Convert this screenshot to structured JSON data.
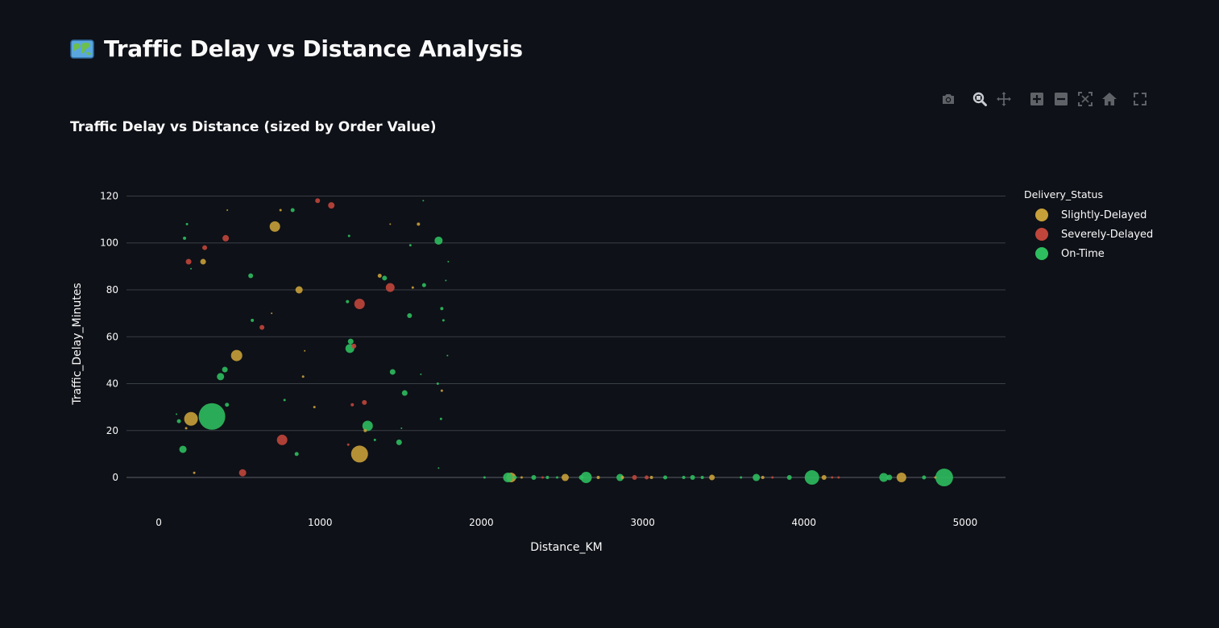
{
  "page": {
    "title": "Traffic Delay vs Distance Analysis",
    "title_icon": "world-map-icon"
  },
  "toolbar": {
    "icons": [
      "camera-icon",
      "zoom-icon",
      "pan-icon",
      "zoom-in-icon",
      "zoom-out-icon",
      "autoscale-icon",
      "reset-axes-icon",
      "fullscreen-icon"
    ]
  },
  "colors": {
    "background": "#0e1117",
    "grid": "#3a3e45",
    "Slightly-Delayed": "#c8a03a",
    "Severely-Delayed": "#c0463b",
    "On-Time": "#2ebd5e"
  },
  "chart_data": {
    "type": "scatter",
    "title": "Traffic Delay vs Distance (sized by Order Value)",
    "xlabel": "Distance_KM",
    "ylabel": "Traffic_Delay_Minutes",
    "xlim": [
      -200,
      5250
    ],
    "ylim": [
      -12,
      126
    ],
    "xticks": [
      0,
      1000,
      2000,
      3000,
      4000,
      5000
    ],
    "yticks": [
      0,
      20,
      40,
      60,
      80,
      100,
      120
    ],
    "grid": true,
    "legend_title": "Delivery_Status",
    "legend_position": "right",
    "size_variable": "Order Value",
    "series": [
      {
        "name": "Slightly-Delayed",
        "points": [
          {
            "x": 200,
            "y": 25,
            "s": 17
          },
          {
            "x": 483,
            "y": 52,
            "s": 14
          },
          {
            "x": 720,
            "y": 107,
            "s": 13
          },
          {
            "x": 1245,
            "y": 10,
            "s": 21
          },
          {
            "x": 870,
            "y": 80,
            "s": 9
          },
          {
            "x": 275,
            "y": 92,
            "s": 7
          },
          {
            "x": 1370,
            "y": 86,
            "s": 5
          },
          {
            "x": 1610,
            "y": 108,
            "s": 4
          },
          {
            "x": 1280,
            "y": 20,
            "s": 4
          },
          {
            "x": 170,
            "y": 21,
            "s": 3
          },
          {
            "x": 220,
            "y": 2,
            "s": 3
          },
          {
            "x": 895,
            "y": 43,
            "s": 3
          },
          {
            "x": 965,
            "y": 30,
            "s": 3
          },
          {
            "x": 755,
            "y": 114,
            "s": 3
          },
          {
            "x": 1755,
            "y": 37,
            "s": 3
          },
          {
            "x": 1575,
            "y": 81,
            "s": 3
          },
          {
            "x": 700,
            "y": 70,
            "s": 2
          },
          {
            "x": 1435,
            "y": 108,
            "s": 2
          },
          {
            "x": 905,
            "y": 54,
            "s": 2
          },
          {
            "x": 425,
            "y": 114,
            "s": 2
          },
          {
            "x": 2185,
            "y": 0,
            "s": 12
          },
          {
            "x": 2520,
            "y": 0,
            "s": 9
          },
          {
            "x": 4605,
            "y": 0,
            "s": 12
          },
          {
            "x": 3430,
            "y": 0,
            "s": 7
          },
          {
            "x": 4125,
            "y": 0,
            "s": 6
          },
          {
            "x": 2725,
            "y": 0,
            "s": 4
          },
          {
            "x": 2875,
            "y": 0,
            "s": 4
          },
          {
            "x": 3055,
            "y": 0,
            "s": 4
          },
          {
            "x": 3745,
            "y": 0,
            "s": 4
          },
          {
            "x": 2250,
            "y": 0,
            "s": 3
          },
          {
            "x": 4815,
            "y": 0,
            "s": 3
          }
        ]
      },
      {
        "name": "Severely-Delayed",
        "points": [
          {
            "x": 765,
            "y": 16,
            "s": 13
          },
          {
            "x": 1245,
            "y": 74,
            "s": 13
          },
          {
            "x": 1435,
            "y": 81,
            "s": 11
          },
          {
            "x": 1070,
            "y": 116,
            "s": 8
          },
          {
            "x": 520,
            "y": 2,
            "s": 9
          },
          {
            "x": 415,
            "y": 102,
            "s": 8
          },
          {
            "x": 185,
            "y": 92,
            "s": 7
          },
          {
            "x": 985,
            "y": 118,
            "s": 6
          },
          {
            "x": 1275,
            "y": 32,
            "s": 6
          },
          {
            "x": 640,
            "y": 64,
            "s": 6
          },
          {
            "x": 285,
            "y": 98,
            "s": 6
          },
          {
            "x": 1210,
            "y": 56,
            "s": 6
          },
          {
            "x": 1200,
            "y": 31,
            "s": 4
          },
          {
            "x": 1175,
            "y": 14,
            "s": 3
          },
          {
            "x": 2950,
            "y": 0,
            "s": 6
          },
          {
            "x": 3025,
            "y": 0,
            "s": 5
          },
          {
            "x": 2380,
            "y": 0,
            "s": 3
          },
          {
            "x": 4175,
            "y": 0,
            "s": 3
          },
          {
            "x": 4215,
            "y": 0,
            "s": 3
          },
          {
            "x": 3805,
            "y": 0,
            "s": 3
          }
        ]
      },
      {
        "name": "On-Time",
        "points": [
          {
            "x": 330,
            "y": 26,
            "s": 33
          },
          {
            "x": 1295,
            "y": 22,
            "s": 13
          },
          {
            "x": 1185,
            "y": 55,
            "s": 11
          },
          {
            "x": 1735,
            "y": 101,
            "s": 10
          },
          {
            "x": 150,
            "y": 12,
            "s": 9
          },
          {
            "x": 383,
            "y": 43,
            "s": 9
          },
          {
            "x": 410,
            "y": 46,
            "s": 7
          },
          {
            "x": 1450,
            "y": 45,
            "s": 7
          },
          {
            "x": 1525,
            "y": 36,
            "s": 7
          },
          {
            "x": 1190,
            "y": 58,
            "s": 7
          },
          {
            "x": 1400,
            "y": 85,
            "s": 6
          },
          {
            "x": 1490,
            "y": 15,
            "s": 7
          },
          {
            "x": 570,
            "y": 86,
            "s": 6
          },
          {
            "x": 830,
            "y": 114,
            "s": 5
          },
          {
            "x": 1645,
            "y": 82,
            "s": 5
          },
          {
            "x": 1555,
            "y": 69,
            "s": 6
          },
          {
            "x": 125,
            "y": 24,
            "s": 5
          },
          {
            "x": 423,
            "y": 31,
            "s": 5
          },
          {
            "x": 580,
            "y": 67,
            "s": 4
          },
          {
            "x": 855,
            "y": 10,
            "s": 5
          },
          {
            "x": 1170,
            "y": 75,
            "s": 4
          },
          {
            "x": 1755,
            "y": 72,
            "s": 4
          },
          {
            "x": 1765,
            "y": 67,
            "s": 3
          },
          {
            "x": 160,
            "y": 102,
            "s": 4
          },
          {
            "x": 175,
            "y": 108,
            "s": 3
          },
          {
            "x": 1180,
            "y": 103,
            "s": 3
          },
          {
            "x": 1560,
            "y": 99,
            "s": 3
          },
          {
            "x": 780,
            "y": 33,
            "s": 3
          },
          {
            "x": 1750,
            "y": 25,
            "s": 3
          },
          {
            "x": 1340,
            "y": 16,
            "s": 3
          },
          {
            "x": 1730,
            "y": 40,
            "s": 3
          },
          {
            "x": 1625,
            "y": 44,
            "s": 2
          },
          {
            "x": 1735,
            "y": 4,
            "s": 2
          },
          {
            "x": 1780,
            "y": 84,
            "s": 2
          },
          {
            "x": 1795,
            "y": 92,
            "s": 2
          },
          {
            "x": 1790,
            "y": 52,
            "s": 2
          },
          {
            "x": 1640,
            "y": 118,
            "s": 2
          },
          {
            "x": 200,
            "y": 89,
            "s": 2
          },
          {
            "x": 110,
            "y": 27,
            "s": 2
          },
          {
            "x": 1505,
            "y": 21,
            "s": 2
          },
          {
            "x": 4870,
            "y": 0,
            "s": 22
          },
          {
            "x": 4050,
            "y": 0,
            "s": 18
          },
          {
            "x": 2650,
            "y": 0,
            "s": 14
          },
          {
            "x": 2165,
            "y": 0,
            "s": 12
          },
          {
            "x": 4495,
            "y": 0,
            "s": 11
          },
          {
            "x": 3705,
            "y": 0,
            "s": 9
          },
          {
            "x": 2860,
            "y": 0,
            "s": 9
          },
          {
            "x": 2325,
            "y": 0,
            "s": 6
          },
          {
            "x": 4530,
            "y": 0,
            "s": 7
          },
          {
            "x": 3310,
            "y": 0,
            "s": 6
          },
          {
            "x": 2620,
            "y": 0,
            "s": 6
          },
          {
            "x": 3140,
            "y": 0,
            "s": 5
          },
          {
            "x": 3910,
            "y": 0,
            "s": 6
          },
          {
            "x": 4745,
            "y": 0,
            "s": 5
          },
          {
            "x": 2410,
            "y": 0,
            "s": 4
          },
          {
            "x": 3255,
            "y": 0,
            "s": 4
          },
          {
            "x": 3370,
            "y": 0,
            "s": 4
          },
          {
            "x": 2210,
            "y": 0,
            "s": 4
          },
          {
            "x": 3610,
            "y": 0,
            "s": 3
          },
          {
            "x": 2470,
            "y": 0,
            "s": 3
          },
          {
            "x": 2020,
            "y": 0,
            "s": 3
          }
        ]
      }
    ]
  }
}
